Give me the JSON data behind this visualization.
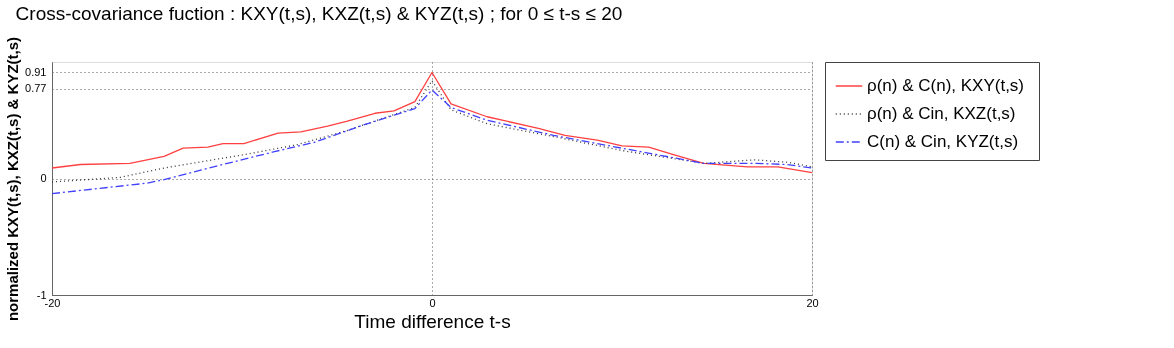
{
  "chart_data": {
    "type": "line",
    "title": "Cross-covariance fuction : KXY(t,s), KXZ(t,s) & KYZ(t,s) ; for 0 ≤ t-s ≤ 20",
    "xlabel": "Time difference t-s",
    "ylabel": "normalized KXY(t,s), KXZ(t,s) & KYZ(t,s)",
    "xlim": [
      -20,
      20
    ],
    "xticks": [
      -20,
      0,
      20
    ],
    "ylim": [
      -1,
      1
    ],
    "yticks": [
      -1,
      0,
      0.77,
      0.91
    ],
    "grid": true,
    "legend": "right",
    "marker": "none",
    "series": [
      {
        "name": "ρ(n) & C(n),  KXY(t,s)",
        "color": "#ff4040",
        "line_style": "solid",
        "x": [
          -20,
          -18.5,
          -15.9,
          -14.1,
          -13.1,
          -11.8,
          -11,
          -9.9,
          -8.1,
          -6.9,
          -5.5,
          -4.5,
          -3,
          -2,
          -0.9,
          0,
          1,
          2.9,
          5.6,
          7,
          8.7,
          10,
          11.4,
          12.8,
          14.3,
          16.6,
          18.2,
          20
        ],
        "values": [
          0.09,
          0.12,
          0.13,
          0.19,
          0.26,
          0.27,
          0.3,
          0.3,
          0.39,
          0.4,
          0.45,
          0.49,
          0.56,
          0.58,
          0.66,
          0.91,
          0.64,
          0.53,
          0.43,
          0.37,
          0.33,
          0.28,
          0.27,
          0.2,
          0.13,
          0.1,
          0.1,
          0.05
        ]
      },
      {
        "name": "ρ(n) & Cin,  KXZ(t,s)",
        "color": "#333333",
        "line_style": "dotted",
        "x": [
          -20,
          -16.4,
          -14.1,
          -9.7,
          -7.1,
          -4.5,
          -0.9,
          0,
          1,
          2.9,
          6.4,
          10,
          14.3,
          17,
          18.7,
          20
        ],
        "values": [
          -0.03,
          0.01,
          0.09,
          0.21,
          0.29,
          0.41,
          0.61,
          0.84,
          0.59,
          0.47,
          0.36,
          0.24,
          0.13,
          0.16,
          0.14,
          0.1
        ]
      },
      {
        "name": "C(n) & Cin,  KYZ(t,s)",
        "color": "#4040ff",
        "line_style": "dashed",
        "x": [
          -20,
          -15,
          -14.1,
          -11.5,
          -8.3,
          -6.2,
          -3.6,
          -0.9,
          0,
          1,
          2.9,
          6.4,
          10,
          14.3,
          17,
          18.7,
          20
        ],
        "values": [
          -0.13,
          -0.04,
          -0.01,
          0.1,
          0.23,
          0.31,
          0.46,
          0.6,
          0.76,
          0.61,
          0.5,
          0.37,
          0.26,
          0.13,
          0.13,
          0.12,
          0.09
        ]
      }
    ]
  }
}
